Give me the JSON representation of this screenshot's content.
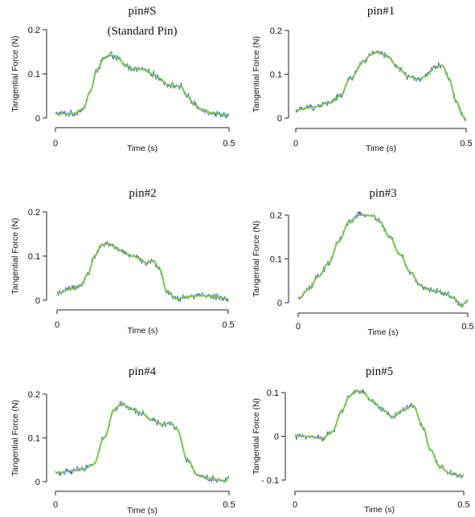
{
  "chart_data": [
    {
      "type": "line",
      "title": "pin#S",
      "subtitle": "(Standard Pin)",
      "xlabel": "Time (s)",
      "ylabel": "Tangential Force (N)",
      "xlim": [
        0,
        0.5
      ],
      "ylim": [
        0,
        0.2
      ],
      "xticks": [
        "0",
        "0.5"
      ],
      "yticks": [
        "0",
        "0.1",
        "0.2"
      ],
      "colors": {
        "raw": "#3a5fcd",
        "fit": "#7ac943"
      },
      "series": [
        {
          "x": [
            0,
            0.05,
            0.08,
            0.1,
            0.12,
            0.14,
            0.16,
            0.18,
            0.2,
            0.22,
            0.25,
            0.28,
            0.3,
            0.32,
            0.34,
            0.36,
            0.38,
            0.4,
            0.42,
            0.45,
            0.48,
            0.5
          ],
          "values": [
            0.01,
            0.01,
            0.02,
            0.06,
            0.11,
            0.135,
            0.142,
            0.135,
            0.12,
            0.112,
            0.11,
            0.1,
            0.09,
            0.076,
            0.073,
            0.072,
            0.05,
            0.03,
            0.02,
            0.012,
            0.008,
            0.006
          ]
        }
      ]
    },
    {
      "type": "line",
      "title": "pin#1",
      "xlabel": "Time (s)",
      "ylabel": "Tangential Force (N)",
      "xlim": [
        0,
        0.5
      ],
      "ylim": [
        0,
        0.2
      ],
      "xticks": [
        "0",
        "0.5"
      ],
      "yticks": [
        "0",
        "0.1",
        "0.2"
      ],
      "colors": {
        "raw": "#3a5fcd",
        "fit": "#7ac943"
      },
      "series": [
        {
          "x": [
            0,
            0.05,
            0.1,
            0.13,
            0.16,
            0.2,
            0.22,
            0.24,
            0.27,
            0.3,
            0.33,
            0.36,
            0.38,
            0.41,
            0.43,
            0.45,
            0.47,
            0.49,
            0.5
          ],
          "values": [
            0.018,
            0.025,
            0.035,
            0.05,
            0.09,
            0.13,
            0.145,
            0.15,
            0.14,
            0.115,
            0.095,
            0.088,
            0.095,
            0.118,
            0.12,
            0.09,
            0.04,
            0.005,
            -0.005
          ]
        }
      ]
    },
    {
      "type": "line",
      "title": "pin#2",
      "xlabel": "Time (s)",
      "ylabel": "Tangential Force (N)",
      "xlim": [
        0,
        0.5
      ],
      "ylim": [
        0,
        0.2
      ],
      "xticks": [
        "0",
        "0.5"
      ],
      "yticks": [
        "0",
        "0.1",
        "0.2"
      ],
      "colors": {
        "raw": "#3a5fcd",
        "fit": "#7ac943"
      },
      "series": [
        {
          "x": [
            0,
            0.04,
            0.07,
            0.09,
            0.11,
            0.13,
            0.15,
            0.18,
            0.2,
            0.22,
            0.24,
            0.26,
            0.28,
            0.3,
            0.32,
            0.35,
            0.38,
            0.41,
            0.44,
            0.47,
            0.5
          ],
          "values": [
            0.015,
            0.025,
            0.035,
            0.06,
            0.1,
            0.125,
            0.128,
            0.115,
            0.105,
            0.1,
            0.095,
            0.085,
            0.09,
            0.07,
            0.02,
            0.003,
            0.008,
            0.01,
            0.01,
            0.007,
            0.003
          ]
        }
      ]
    },
    {
      "type": "line",
      "title": "pin#3",
      "xlabel": "Time (s)",
      "ylabel": "Tangential Force (N)",
      "xlim": [
        0,
        0.5
      ],
      "ylim": [
        0,
        0.2
      ],
      "xticks": [
        "0",
        "0.5"
      ],
      "yticks": [
        "0",
        "0.1",
        "0.2"
      ],
      "colors": {
        "raw": "#3a5fcd",
        "fit": "#7ac943"
      },
      "series": [
        {
          "x": [
            0,
            0.03,
            0.06,
            0.09,
            0.12,
            0.15,
            0.18,
            0.2,
            0.22,
            0.24,
            0.27,
            0.3,
            0.33,
            0.36,
            0.38,
            0.4,
            0.43,
            0.46,
            0.48,
            0.5
          ],
          "values": [
            0.008,
            0.03,
            0.06,
            0.09,
            0.14,
            0.185,
            0.2,
            0.2,
            0.198,
            0.185,
            0.15,
            0.11,
            0.07,
            0.04,
            0.03,
            0.028,
            0.022,
            0.01,
            -0.008,
            0.005
          ]
        }
      ]
    },
    {
      "type": "line",
      "title": "pin#4",
      "xlabel": "Time (s)",
      "ylabel": "Tangential Force (N)",
      "xlim": [
        0,
        0.5
      ],
      "ylim": [
        0,
        0.2
      ],
      "xticks": [
        "0",
        "0.5"
      ],
      "yticks": [
        "0",
        "0.1",
        "0.2"
      ],
      "colors": {
        "raw": "#3a5fcd",
        "fit": "#7ac943"
      },
      "series": [
        {
          "x": [
            0,
            0.05,
            0.08,
            0.11,
            0.14,
            0.17,
            0.19,
            0.22,
            0.25,
            0.28,
            0.31,
            0.33,
            0.35,
            0.38,
            0.41,
            0.44,
            0.47,
            0.49,
            0.5
          ],
          "values": [
            0.02,
            0.025,
            0.028,
            0.04,
            0.1,
            0.165,
            0.178,
            0.165,
            0.155,
            0.14,
            0.13,
            0.135,
            0.12,
            0.05,
            0.015,
            0.008,
            0.004,
            0.002,
            0.012
          ]
        }
      ]
    },
    {
      "type": "line",
      "title": "pin#5",
      "xlabel": "Time (s)",
      "ylabel": "Tangential Force (N)",
      "xlim": [
        0,
        0.5
      ],
      "ylim": [
        -0.1,
        0.1
      ],
      "xticks": [
        "0",
        "0.5"
      ],
      "yticks": [
        "- 0.1",
        "0",
        "0.1"
      ],
      "colors": {
        "raw": "#3a5fcd",
        "fit": "#7ac943"
      },
      "series": [
        {
          "x": [
            0,
            0.04,
            0.08,
            0.11,
            0.14,
            0.16,
            0.18,
            0.2,
            0.23,
            0.26,
            0.29,
            0.32,
            0.35,
            0.38,
            0.4,
            0.43,
            0.46,
            0.49,
            0.5
          ],
          "values": [
            0.0,
            0.0,
            -0.005,
            0.01,
            0.06,
            0.09,
            0.105,
            0.1,
            0.08,
            0.06,
            0.045,
            0.06,
            0.07,
            0.02,
            -0.03,
            -0.07,
            -0.085,
            -0.09,
            -0.09
          ]
        }
      ]
    }
  ]
}
